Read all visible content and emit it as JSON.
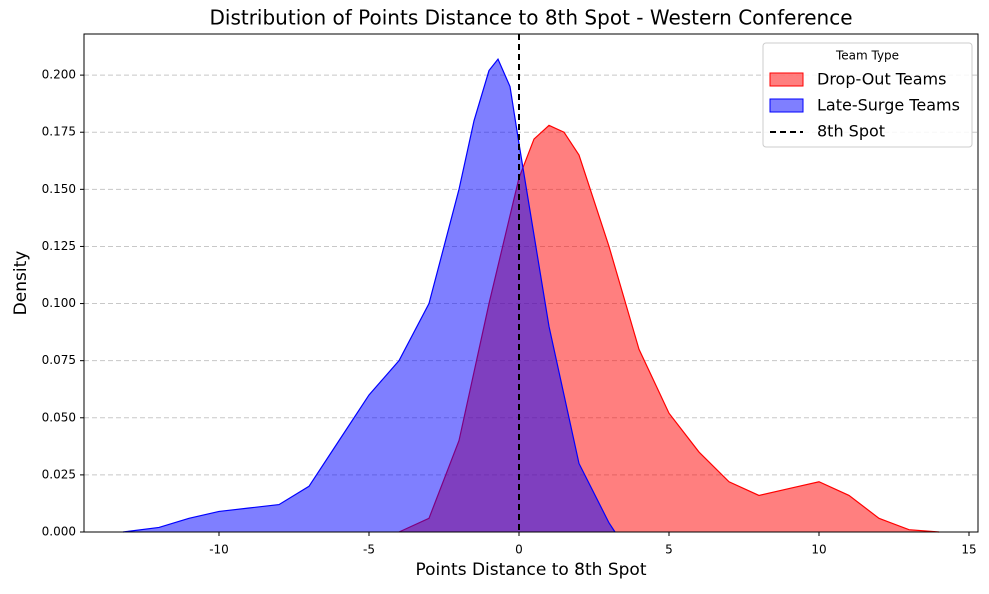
{
  "chart_data": {
    "type": "kde",
    "title": "Distribution of Points Distance to 8th Spot - Western Conference",
    "x_label": "Points Distance to 8th Spot",
    "y_label": "Density",
    "xlim": [
      -14.5,
      15.3
    ],
    "ylim": [
      0,
      0.218
    ],
    "xticks": [
      -10,
      -5,
      0,
      5,
      10,
      15
    ],
    "yticks": [
      {
        "value": 0,
        "label": "0.000"
      },
      {
        "value": 0.025,
        "label": "0.025"
      },
      {
        "value": 0.05,
        "label": "0.050"
      },
      {
        "value": 0.075,
        "label": "0.075"
      },
      {
        "value": 0.1,
        "label": "0.100"
      },
      {
        "value": 0.125,
        "label": "0.125"
      },
      {
        "value": 0.15,
        "label": "0.150"
      },
      {
        "value": 0.175,
        "label": "0.175"
      },
      {
        "value": 0.2,
        "label": "0.200"
      }
    ],
    "grid": true,
    "legend_title": "Team Type",
    "legend_position": "upper right",
    "series": [
      {
        "name": "Drop-Out Teams",
        "color": "#ff0000",
        "x": [
          -4,
          -3,
          -2,
          -1,
          0,
          0.5,
          1,
          1.5,
          2,
          3,
          4,
          5,
          6,
          7,
          8,
          9,
          10,
          11,
          12,
          13,
          14
        ],
        "values": [
          0.0,
          0.006,
          0.04,
          0.1,
          0.155,
          0.172,
          0.178,
          0.175,
          0.165,
          0.125,
          0.08,
          0.052,
          0.035,
          0.022,
          0.016,
          0.019,
          0.022,
          0.016,
          0.006,
          0.001,
          0.0
        ]
      },
      {
        "name": "Late-Surge Teams",
        "color": "#0000ff",
        "x": [
          -13.2,
          -12,
          -11,
          -10,
          -9,
          -8,
          -7,
          -6,
          -5,
          -4,
          -3,
          -2,
          -1.5,
          -1,
          -0.7,
          -0.3,
          0,
          0.5,
          1,
          2,
          3,
          3.2
        ],
        "values": [
          0.0,
          0.002,
          0.006,
          0.009,
          0.0105,
          0.012,
          0.02,
          0.04,
          0.06,
          0.075,
          0.1,
          0.15,
          0.18,
          0.202,
          0.207,
          0.195,
          0.17,
          0.13,
          0.09,
          0.03,
          0.004,
          0.0
        ]
      }
    ],
    "reference_line": {
      "name": "8th Spot",
      "x": 0,
      "color": "#000000"
    }
  }
}
